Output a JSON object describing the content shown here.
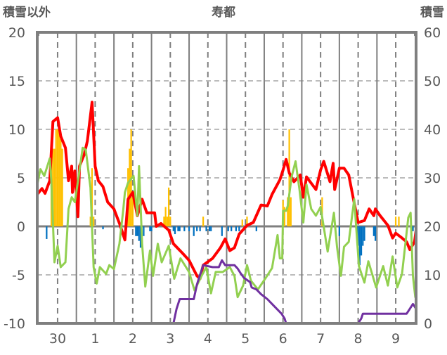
{
  "chart_data": {
    "type": "line",
    "title": "寿都",
    "ylabel_left": "積雪以外",
    "ylabel_right": "積雪",
    "ylim_left": [
      -10,
      20
    ],
    "ylim_right": [
      0,
      60
    ],
    "yticks_left": [
      "20",
      "15",
      "10",
      "5",
      "0",
      "-5",
      "-10"
    ],
    "yticks_right": [
      "60",
      "50",
      "40",
      "30",
      "20",
      "10",
      "0"
    ],
    "x_unit": "hours from left edge",
    "xlim": [
      0,
      242
    ],
    "x_ticks": [
      {
        "label": "30",
        "x": 13
      },
      {
        "label": "1",
        "x": 37
      },
      {
        "label": "2",
        "x": 61
      },
      {
        "label": "3",
        "x": 85
      },
      {
        "label": "4",
        "x": 109
      },
      {
        "label": "5",
        "x": 133
      },
      {
        "label": "6",
        "x": 157
      },
      {
        "label": "7",
        "x": 181
      },
      {
        "label": "8",
        "x": 205
      },
      {
        "label": "9",
        "x": 229
      }
    ],
    "day_boundaries": [
      25,
      49,
      73,
      97,
      121,
      145,
      169,
      193,
      217
    ],
    "grid": true,
    "colors": {
      "red": "#ff0000",
      "green": "#92d050",
      "purple": "#7030a0",
      "orange": "#ffc000",
      "blue": "#0070c0",
      "axis": "#7f7f7f"
    },
    "series": [
      {
        "name": "red_line",
        "axis": "left",
        "color": "#ff0000",
        "points": [
          [
            0,
            3.3
          ],
          [
            3,
            3.9
          ],
          [
            5,
            3.4
          ],
          [
            8,
            4.7
          ],
          [
            10,
            10.8
          ],
          [
            13,
            11.2
          ],
          [
            15,
            9.3
          ],
          [
            18,
            8.1
          ],
          [
            20,
            4.7
          ],
          [
            22,
            6.2
          ],
          [
            22.5,
            3.5
          ],
          [
            24,
            5.7
          ],
          [
            26,
            1.0
          ],
          [
            27,
            6.2
          ],
          [
            30,
            7.4
          ],
          [
            32,
            8.8
          ],
          [
            35,
            12.8
          ],
          [
            37,
            6.2
          ],
          [
            39,
            4.7
          ],
          [
            42,
            4.1
          ],
          [
            45,
            2.5
          ],
          [
            49,
            1.8
          ],
          [
            53,
            0.1
          ],
          [
            56,
            -1.4
          ],
          [
            58,
            2.8
          ],
          [
            61,
            3.5
          ],
          [
            64,
            1.1
          ],
          [
            67,
            2.8
          ],
          [
            70,
            1.4
          ],
          [
            75,
            1.4
          ],
          [
            76,
            0
          ],
          [
            79,
            0.3
          ],
          [
            84,
            -0.4
          ],
          [
            87,
            -1.8
          ],
          [
            93,
            -2.8
          ],
          [
            97,
            -3.5
          ],
          [
            102,
            -5.1
          ],
          [
            104,
            -5.4
          ],
          [
            106,
            -4.0
          ],
          [
            112,
            -3.3
          ],
          [
            117,
            -2.2
          ],
          [
            120,
            -1.3
          ],
          [
            123,
            -2.5
          ],
          [
            126,
            -2.2
          ],
          [
            129,
            -0.8
          ],
          [
            134,
            0.1
          ],
          [
            138,
            0.4
          ],
          [
            143,
            2.2
          ],
          [
            147,
            2.1
          ],
          [
            150,
            3.3
          ],
          [
            155,
            4.8
          ],
          [
            157,
            5.8
          ],
          [
            159,
            6.9
          ],
          [
            161,
            5.5
          ],
          [
            164,
            4.6
          ],
          [
            168,
            5.3
          ],
          [
            170,
            3.0
          ],
          [
            172,
            5.1
          ],
          [
            178,
            3.8
          ],
          [
            181,
            5.8
          ],
          [
            183,
            6.7
          ],
          [
            187,
            4.6
          ],
          [
            189,
            6.5
          ],
          [
            190,
            3.8
          ],
          [
            193,
            6.0
          ],
          [
            196,
            6.0
          ],
          [
            199,
            5.3
          ],
          [
            202,
            2.8
          ],
          [
            205,
            0.4
          ],
          [
            209,
            0.6
          ],
          [
            212,
            1.8
          ],
          [
            215,
            1.1
          ],
          [
            216,
            1.8
          ],
          [
            219,
            1.1
          ],
          [
            224,
            0.1
          ],
          [
            227,
            -1.2
          ],
          [
            229,
            -0.7
          ],
          [
            233,
            -1.2
          ],
          [
            236,
            -1.6
          ],
          [
            238,
            -2.4
          ],
          [
            241,
            -1.6
          ],
          [
            242,
            -0.4
          ]
        ]
      },
      {
        "name": "green_line",
        "axis": "left",
        "color": "#92d050",
        "points": [
          [
            0,
            4.3
          ],
          [
            2,
            5.9
          ],
          [
            4.5,
            5.2
          ],
          [
            8,
            7.0
          ],
          [
            9,
            4.7
          ],
          [
            11,
            -3.7
          ],
          [
            13,
            -2.0
          ],
          [
            15,
            -4.2
          ],
          [
            18,
            -3.7
          ],
          [
            20,
            1.8
          ],
          [
            22,
            3.0
          ],
          [
            24,
            2.5
          ],
          [
            26.5,
            5.2
          ],
          [
            29,
            8.1
          ],
          [
            31,
            7.9
          ],
          [
            34,
            4.0
          ],
          [
            36,
            -4.2
          ],
          [
            38,
            -5.9
          ],
          [
            40,
            -4.2
          ],
          [
            44,
            -4.9
          ],
          [
            46,
            -4.0
          ],
          [
            49,
            -4.4
          ],
          [
            52.5,
            -1.8
          ],
          [
            55,
            1.8
          ],
          [
            56,
            3.5
          ],
          [
            58,
            4.5
          ],
          [
            61.5,
            5.2
          ],
          [
            64,
            1.1
          ],
          [
            65,
            6.2
          ],
          [
            67,
            -1.8
          ],
          [
            69,
            -6.2
          ],
          [
            72,
            -2.5
          ],
          [
            74,
            -5.1
          ],
          [
            77,
            -1.8
          ],
          [
            79.5,
            -3.7
          ],
          [
            84,
            -2.0
          ],
          [
            87.5,
            -5.4
          ],
          [
            91.5,
            -3.3
          ],
          [
            97,
            -4.7
          ],
          [
            100.5,
            -6.6
          ],
          [
            105,
            -5.1
          ],
          [
            108,
            -4.2
          ],
          [
            111,
            -6.9
          ],
          [
            114,
            -4.7
          ],
          [
            118.5,
            -4.7
          ],
          [
            123,
            -4.2
          ],
          [
            126,
            -5.1
          ],
          [
            128,
            -7.3
          ],
          [
            131.5,
            -6.1
          ],
          [
            134,
            -4.0
          ],
          [
            136.5,
            -5.6
          ],
          [
            141,
            -6.5
          ],
          [
            146,
            -5.3
          ],
          [
            150,
            -4.3
          ],
          [
            153.5,
            -0.9
          ],
          [
            155,
            -3.3
          ],
          [
            156.5,
            -3.3
          ],
          [
            157,
            1.6
          ],
          [
            159,
            1.6
          ],
          [
            160,
            2.1
          ],
          [
            162.5,
            5.1
          ],
          [
            165,
            6.7
          ],
          [
            167.5,
            3.8
          ],
          [
            170,
            0.4
          ],
          [
            172,
            4.3
          ],
          [
            175,
            1.8
          ],
          [
            178,
            1.1
          ],
          [
            181,
            2.0
          ],
          [
            185.5,
            -2.6
          ],
          [
            189.5,
            1.4
          ],
          [
            191.5,
            -2.1
          ],
          [
            194,
            -5.1
          ],
          [
            196,
            -2.1
          ],
          [
            199,
            -1.6
          ],
          [
            202.5,
            2.8
          ],
          [
            205.5,
            -4.1
          ],
          [
            209,
            -5.8
          ],
          [
            211.5,
            -3.6
          ],
          [
            216.5,
            -6.3
          ],
          [
            221,
            -4.1
          ],
          [
            224,
            -6.1
          ],
          [
            227,
            -3.1
          ],
          [
            230,
            -6.3
          ],
          [
            233,
            -4.9
          ],
          [
            237,
            0.9
          ],
          [
            238.5,
            1.4
          ],
          [
            240,
            -5.1
          ],
          [
            241.5,
            -7.3
          ],
          [
            242,
            -5.5
          ]
        ]
      },
      {
        "name": "purple_line",
        "axis": "right",
        "color": "#7030a0",
        "points": [
          [
            0,
            0
          ],
          [
            87,
            0
          ],
          [
            89,
            3
          ],
          [
            91,
            5
          ],
          [
            100,
            5
          ],
          [
            102,
            8
          ],
          [
            104,
            10
          ],
          [
            106,
            12
          ],
          [
            112,
            11.6
          ],
          [
            116,
            11.6
          ],
          [
            118,
            13
          ],
          [
            120,
            12
          ],
          [
            126,
            12
          ],
          [
            128,
            11.3
          ],
          [
            130,
            10.3
          ],
          [
            132,
            9.4
          ],
          [
            136,
            8.5
          ],
          [
            137,
            7.4
          ],
          [
            140,
            7
          ],
          [
            143,
            6
          ],
          [
            147,
            5
          ],
          [
            150,
            4
          ],
          [
            153,
            3
          ],
          [
            156,
            2
          ],
          [
            158,
            1
          ],
          [
            159,
            0
          ],
          [
            205,
            0
          ],
          [
            207,
            1
          ],
          [
            208,
            2
          ],
          [
            236,
            2
          ],
          [
            238,
            3
          ],
          [
            240,
            4
          ],
          [
            242,
            3
          ]
        ]
      },
      {
        "name": "orange_bars",
        "axis": "left",
        "type": "bar",
        "color": "#ffc000",
        "points": [
          [
            9,
            7
          ],
          [
            10,
            8
          ],
          [
            11,
            8
          ],
          [
            12,
            10
          ],
          [
            13,
            10
          ],
          [
            14,
            10
          ],
          [
            15,
            9
          ],
          [
            16,
            8
          ],
          [
            34,
            1
          ],
          [
            35,
            6
          ],
          [
            36,
            1
          ],
          [
            58,
            6
          ],
          [
            59,
            8
          ],
          [
            60,
            10
          ],
          [
            61,
            3
          ],
          [
            81,
            1
          ],
          [
            82,
            2
          ],
          [
            83,
            1
          ],
          [
            84,
            4
          ],
          [
            85,
            1
          ],
          [
            106,
            1
          ],
          [
            131,
            0.7
          ],
          [
            134,
            1
          ],
          [
            157,
            2.7
          ],
          [
            158,
            2
          ],
          [
            160,
            3
          ],
          [
            161,
            10
          ],
          [
            162,
            3
          ],
          [
            182,
            3
          ],
          [
            229,
            1
          ],
          [
            231,
            1
          ]
        ]
      },
      {
        "name": "blue_bars",
        "axis": "left",
        "type": "bar",
        "color": "#0070c0",
        "points": [
          [
            6,
            -1.3
          ],
          [
            42,
            -0.3
          ],
          [
            63,
            -1
          ],
          [
            64,
            -1
          ],
          [
            65,
            -1.5
          ],
          [
            66,
            -2.2
          ],
          [
            68,
            -1
          ],
          [
            72,
            -0.5
          ],
          [
            73,
            -0.5
          ],
          [
            87,
            -0.5
          ],
          [
            88,
            -0.8
          ],
          [
            90,
            -0.5
          ],
          [
            91,
            -0.5
          ],
          [
            94,
            -0.5
          ],
          [
            97,
            -0.5
          ],
          [
            100,
            -1
          ],
          [
            102,
            -0.5
          ],
          [
            104,
            -0.5
          ],
          [
            108,
            -0.5
          ],
          [
            110,
            -0.5
          ],
          [
            111,
            -0.5
          ],
          [
            118,
            -1
          ],
          [
            122,
            -0.5
          ],
          [
            124,
            -0.5
          ],
          [
            127,
            -0.5
          ],
          [
            129,
            -0.5
          ],
          [
            140,
            -0.5
          ],
          [
            193,
            -1
          ],
          [
            204,
            -0.8
          ],
          [
            205,
            -2
          ],
          [
            206,
            -4
          ],
          [
            207,
            -3
          ],
          [
            208,
            -2
          ],
          [
            209,
            -1.5
          ],
          [
            215,
            -1
          ],
          [
            216,
            -1.5
          ],
          [
            240,
            -0.5
          ]
        ]
      }
    ]
  }
}
